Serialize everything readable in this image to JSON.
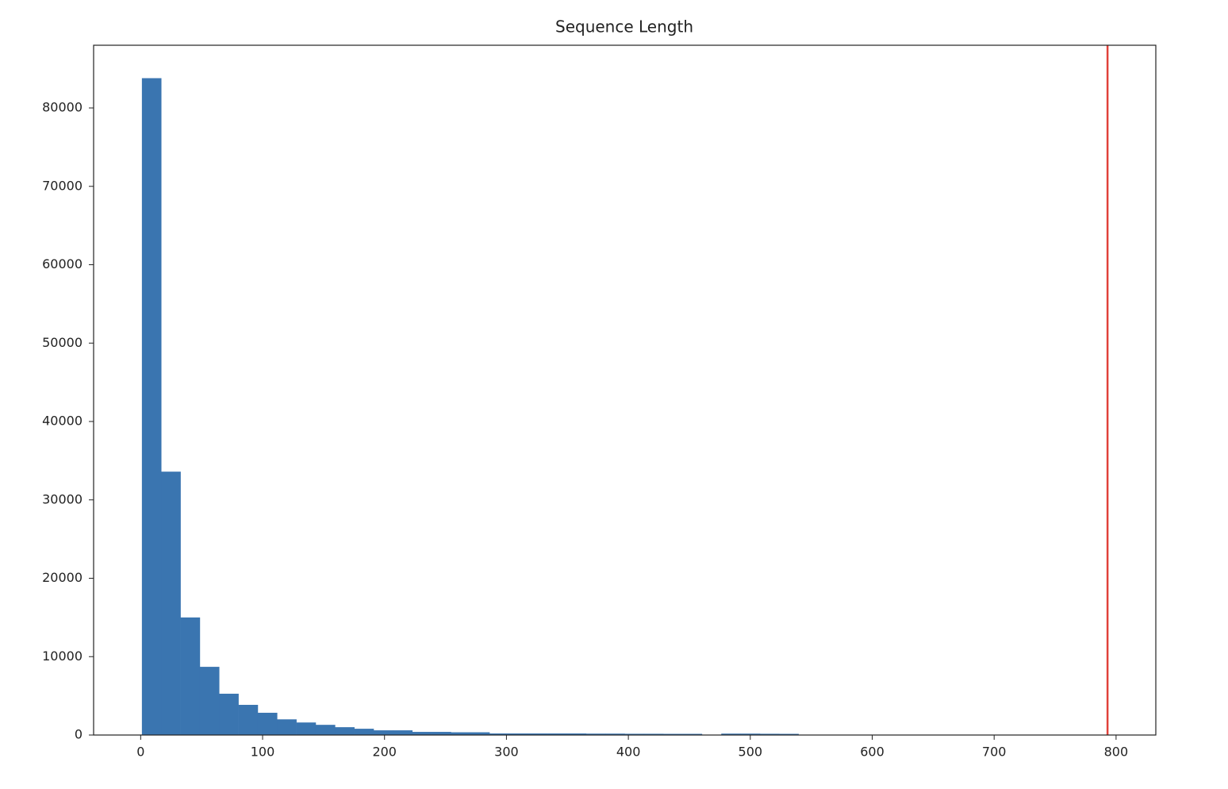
{
  "chart_data": {
    "type": "histogram",
    "title": "Sequence Length",
    "bins": [
      1,
      16.84,
      32.68,
      48.52,
      64.36,
      80.2,
      96.04,
      111.88,
      127.72,
      143.56,
      159.4,
      175.24,
      191.08,
      206.92,
      222.76,
      238.6,
      254.44,
      270.28,
      286.12,
      301.96,
      317.8,
      333.64,
      349.48,
      365.32,
      381.16,
      397,
      412.84,
      428.68,
      444.52,
      460.36,
      476.2,
      492.04,
      507.88,
      523.72,
      539.56,
      555.4,
      571.24,
      587.08,
      602.92,
      618.76,
      634.6,
      650.44,
      666.28,
      682.12,
      697.96,
      713.8,
      729.64,
      745.48,
      761.32,
      777.16,
      793
    ],
    "counts": [
      83800,
      33600,
      15000,
      8700,
      5270,
      3850,
      2840,
      2000,
      1600,
      1300,
      1000,
      800,
      600,
      600,
      400,
      400,
      350,
      350,
      200,
      200,
      200,
      200,
      200,
      180,
      180,
      160,
      160,
      150,
      150,
      30,
      180,
      180,
      160,
      150,
      10,
      10,
      10,
      5,
      5,
      5,
      5,
      5,
      5,
      5,
      5,
      5,
      5,
      5,
      5,
      5
    ],
    "color": "#3a75b0",
    "vline": 793,
    "vline_color": "#e0413a",
    "xlim": [
      -38.6,
      832.6
    ],
    "ylim": [
      0,
      88000
    ],
    "xticks": [
      0,
      100,
      200,
      300,
      400,
      500,
      600,
      700,
      800
    ],
    "yticks": [
      0,
      10000,
      20000,
      30000,
      40000,
      50000,
      60000,
      70000,
      80000
    ]
  }
}
